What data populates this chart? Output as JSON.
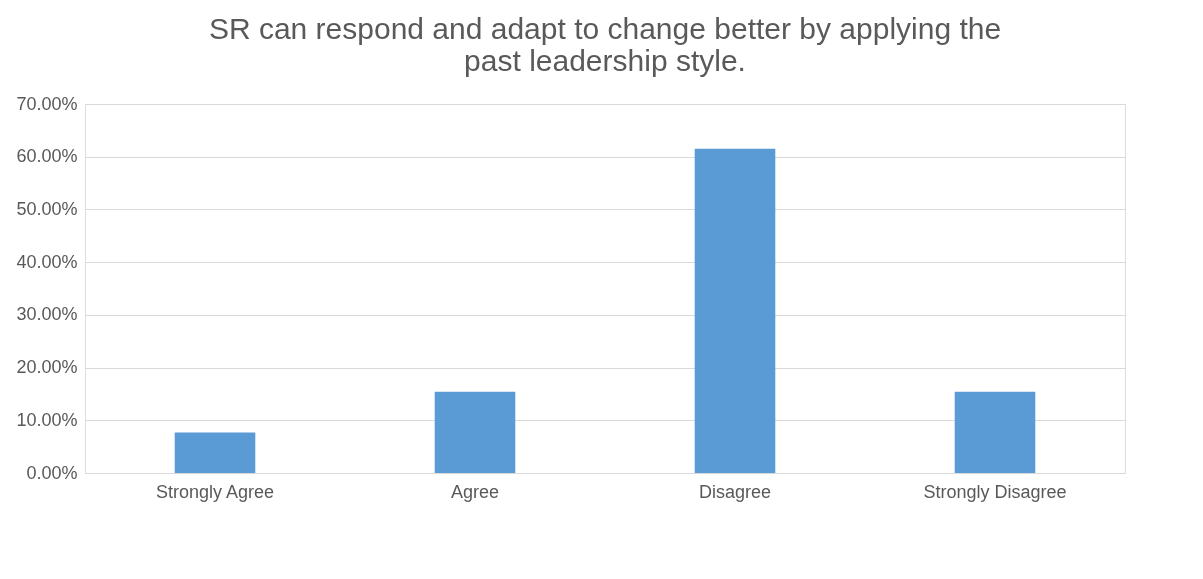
{
  "chart_data": {
    "type": "bar",
    "title": "SR can respond and adapt to change better by applying the past leadership style.",
    "categories": [
      "Strongly Agree",
      "Agree",
      "Disagree",
      "Strongly Disagree"
    ],
    "values": [
      7.7,
      15.4,
      61.5,
      15.4
    ],
    "color": "#5b9bd5",
    "ylim": [
      0,
      70
    ],
    "yticks": [
      {
        "value": 0,
        "label": "0.00%"
      },
      {
        "value": 10,
        "label": "10.00%"
      },
      {
        "value": 20,
        "label": "20.00%"
      },
      {
        "value": 30,
        "label": "30.00%"
      },
      {
        "value": 40,
        "label": "40.00%"
      },
      {
        "value": 50,
        "label": "50.00%"
      },
      {
        "value": 60,
        "label": "60.00%"
      },
      {
        "value": 70,
        "label": "70.00%"
      }
    ],
    "grid": "y"
  }
}
